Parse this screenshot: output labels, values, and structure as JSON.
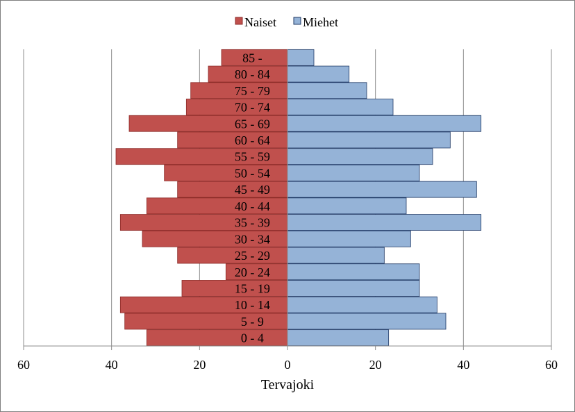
{
  "chart_data": {
    "type": "bar",
    "orientation": "horizontal-population-pyramid",
    "xlabel": "Tervajoki",
    "ylabel": "",
    "xlim": [
      -60,
      60
    ],
    "x_ticks": [
      -60,
      -40,
      -20,
      0,
      20,
      40,
      60
    ],
    "x_tick_labels": [
      "60",
      "40",
      "20",
      "0",
      "20",
      "40",
      "60"
    ],
    "grid": "vertical",
    "legend": "top-center",
    "categories": [
      "0 - 4",
      "5 - 9",
      "10 - 14",
      "15 - 19",
      "20 - 24",
      "25 - 29",
      "30 - 34",
      "35 - 39",
      "40 - 44",
      "45 - 49",
      "50 - 54",
      "55 - 59",
      "60 - 64",
      "65 - 69",
      "70 - 74",
      "75 - 79",
      "80 - 84",
      "85 -"
    ],
    "series": [
      {
        "name": "Naiset",
        "color": "#c0504d",
        "values": [
          32,
          37,
          38,
          24,
          14,
          25,
          33,
          38,
          32,
          25,
          28,
          39,
          25,
          36,
          23,
          22,
          18,
          15
        ]
      },
      {
        "name": "Miehet",
        "color": "#95b3d7",
        "values": [
          23,
          36,
          34,
          30,
          30,
          22,
          28,
          44,
          27,
          43,
          30,
          33,
          37,
          44,
          24,
          18,
          14,
          6
        ]
      }
    ]
  }
}
